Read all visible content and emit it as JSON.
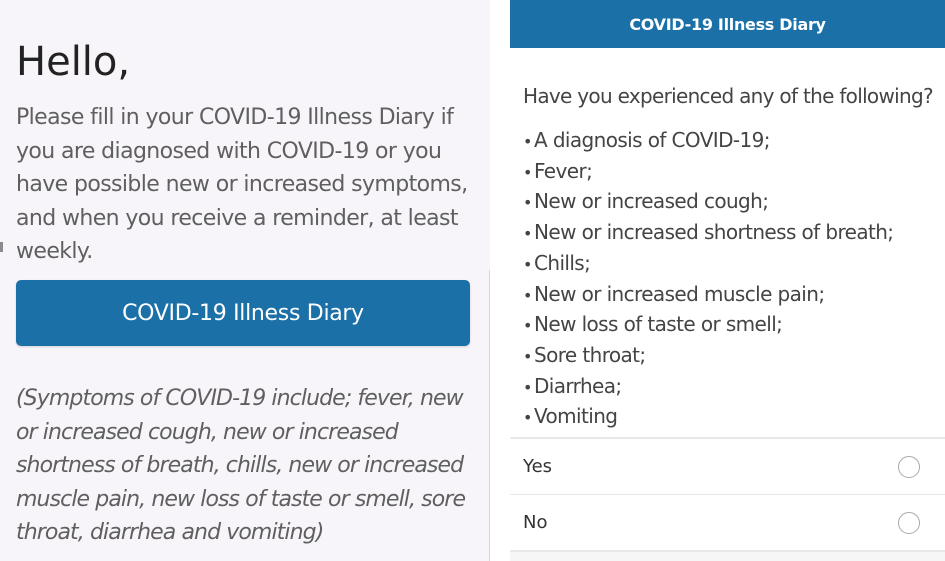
{
  "diary_home": {
    "greeting": "Hello,",
    "intro": "Please fill in your COVID-19 Illness Diary if you are diagnosed with COVID-19 or you have possible new or increased symptoms, and when you receive a reminder, at least weekly.",
    "button_label": "COVID-19 Illness Diary",
    "symptoms_note": "(Symptoms of COVID-19 include; fever, new or increased cough, new or increased shortness of breath, chills, new or increased muscle pain, new loss of taste or smell, sore throat, diarrhea and vomiting)"
  },
  "diary_form": {
    "title": "COVID-19 Illness Diary",
    "question": "Have you experienced any of the following?",
    "symptoms": [
      "A diagnosis of COVID-19;",
      "Fever;",
      "New or increased cough;",
      "New or increased shortness of breath;",
      "Chills;",
      "New or increased muscle pain;",
      "New loss of taste or smell;",
      "Sore throat;",
      "Diarrhea;",
      "Vomiting"
    ],
    "options": [
      {
        "label": "Yes",
        "selected": false
      },
      {
        "label": "No",
        "selected": false
      }
    ]
  },
  "colors": {
    "accent": "#1b70a8",
    "left_background": "#f7f5f9",
    "text_muted": "#5f5f5f"
  },
  "icons": {
    "radio": "radio-button-unchecked"
  }
}
